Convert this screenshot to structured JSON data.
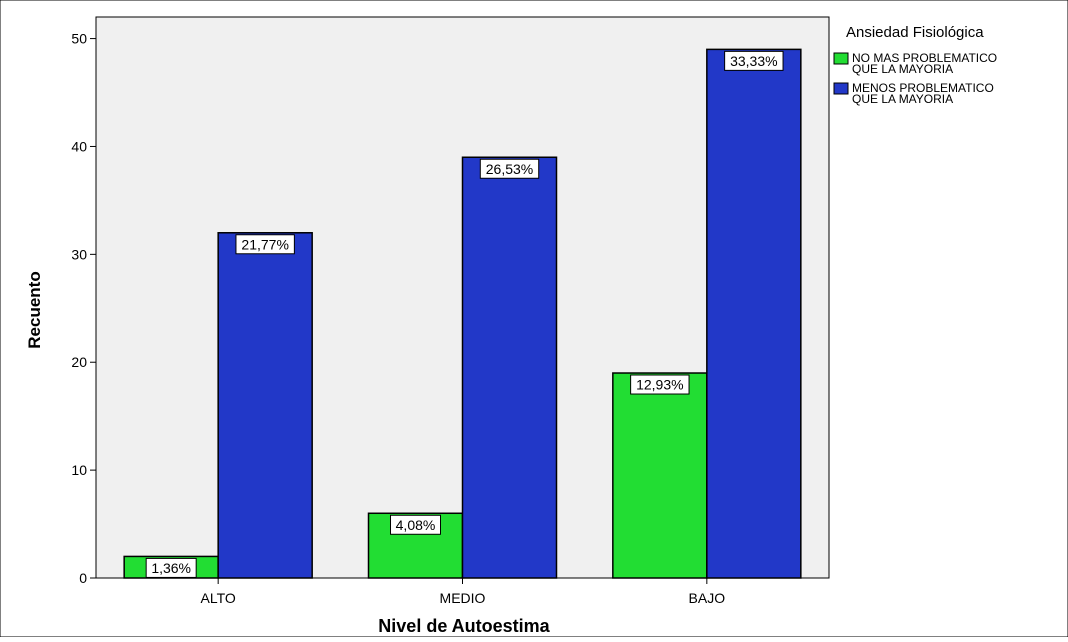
{
  "chart_data": {
    "type": "bar",
    "xlabel": "Nivel de Autoestima",
    "ylabel": "Recuento",
    "categories": [
      "ALTO",
      "MEDIO",
      "BAJO"
    ],
    "yticks": [
      0,
      10,
      20,
      30,
      40,
      50
    ],
    "ylim": [
      0,
      52
    ],
    "grid": false,
    "legend": {
      "title": "Ansiedad Fisiológica",
      "placement": "right",
      "entries": [
        {
          "lines": [
            "NO MAS PROBLEMATICO",
            "QUE LA MAYORIA"
          ]
        },
        {
          "lines": [
            "MENOS PROBLEMATICO",
            "QUE LA MAYORIA"
          ]
        }
      ]
    },
    "series": [
      {
        "key": "no_mas_problematico",
        "color": "#22dd33",
        "values": [
          2,
          6,
          19
        ],
        "labels": [
          "1,36%",
          "4,08%",
          "12,93%"
        ]
      },
      {
        "key": "menos_problematico",
        "color": "#2238c8",
        "values": [
          32,
          39,
          49
        ],
        "labels": [
          "21,77%",
          "26,53%",
          "33,33%"
        ]
      }
    ],
    "colors": {
      "plot_background": "#f0f0f0",
      "frame": "#000000"
    }
  }
}
